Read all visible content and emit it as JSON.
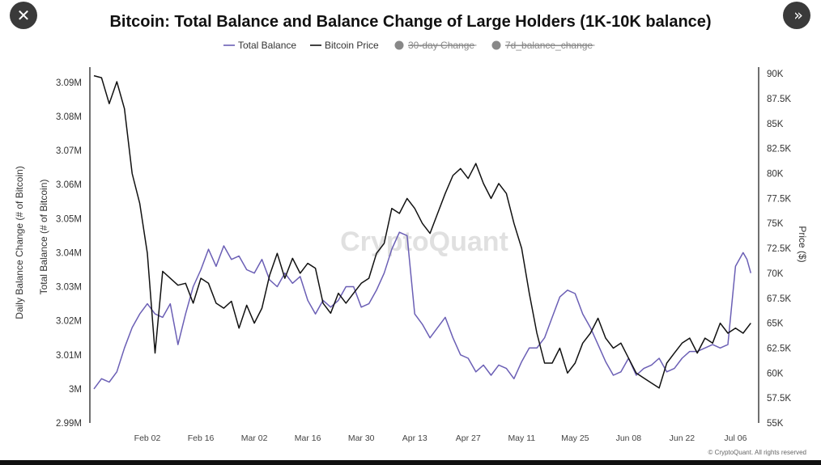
{
  "controls": {
    "close_glyph": "✕",
    "next_glyph": "»"
  },
  "chart_data": {
    "type": "line",
    "title": "Bitcoin: Total Balance and Balance Change of Large Holders (1K-10K balance)",
    "legend": [
      {
        "label": "Total Balance",
        "color": "#6b5fb5",
        "style": "line",
        "enabled": true
      },
      {
        "label": "Bitcoin Price",
        "color": "#111111",
        "style": "line",
        "enabled": true
      },
      {
        "label": "30-day Change",
        "color": "#888888",
        "style": "dot",
        "enabled": false
      },
      {
        "label": "7d_balance_change",
        "color": "#888888",
        "style": "dot",
        "enabled": false
      }
    ],
    "legend_position": "top",
    "y_left_outer_label": "Daily Balance Change (# of Bitcoin)",
    "y_left_label": "Total Balance (# of Bitcoin)",
    "y_right_label": "Price ($)",
    "y_left_ticks": [
      "2.99M",
      "3M",
      "3.01M",
      "3.02M",
      "3.03M",
      "3.04M",
      "3.05M",
      "3.06M",
      "3.07M",
      "3.08M",
      "3.09M"
    ],
    "y_left_range": [
      2990000,
      3094000
    ],
    "y_right_ticks": [
      "55K",
      "57.5K",
      "60K",
      "62.5K",
      "65K",
      "67.5K",
      "70K",
      "72.5K",
      "75K",
      "77.5K",
      "80K",
      "82.5K",
      "85K",
      "87.5K",
      "90K"
    ],
    "y_right_range": [
      55000,
      90500
    ],
    "x_ticks": [
      "Feb 02",
      "Feb 16",
      "Mar 02",
      "Mar 16",
      "Mar 30",
      "Apr 13",
      "Apr 27",
      "May 11",
      "May 25",
      "Jun 08",
      "Jun 22",
      "Jul 06"
    ],
    "x_range_days": [
      0,
      173
    ],
    "watermark": "CryptoQuant",
    "footer": "© CryptoQuant. All rights reserved",
    "grid": false,
    "series": [
      {
        "name": "Total Balance",
        "axis": "left",
        "color": "#6b5fb5",
        "points": [
          [
            0,
            3000000
          ],
          [
            2,
            3003000
          ],
          [
            4,
            3002000
          ],
          [
            6,
            3005000
          ],
          [
            8,
            3012000
          ],
          [
            10,
            3018000
          ],
          [
            12,
            3022000
          ],
          [
            14,
            3025000
          ],
          [
            16,
            3022000
          ],
          [
            18,
            3021000
          ],
          [
            20,
            3025000
          ],
          [
            22,
            3013000
          ],
          [
            24,
            3022000
          ],
          [
            26,
            3030000
          ],
          [
            28,
            3035000
          ],
          [
            30,
            3041000
          ],
          [
            32,
            3036000
          ],
          [
            34,
            3042000
          ],
          [
            36,
            3038000
          ],
          [
            38,
            3039000
          ],
          [
            40,
            3035000
          ],
          [
            42,
            3034000
          ],
          [
            44,
            3038000
          ],
          [
            46,
            3032000
          ],
          [
            48,
            3030000
          ],
          [
            50,
            3034000
          ],
          [
            52,
            3031000
          ],
          [
            54,
            3033000
          ],
          [
            56,
            3026000
          ],
          [
            58,
            3022000
          ],
          [
            60,
            3026000
          ],
          [
            62,
            3024000
          ],
          [
            64,
            3026000
          ],
          [
            66,
            3030000
          ],
          [
            68,
            3030000
          ],
          [
            70,
            3024000
          ],
          [
            72,
            3025000
          ],
          [
            74,
            3029000
          ],
          [
            76,
            3034000
          ],
          [
            78,
            3041000
          ],
          [
            80,
            3046000
          ],
          [
            82,
            3045000
          ],
          [
            84,
            3022000
          ],
          [
            86,
            3019000
          ],
          [
            88,
            3015000
          ],
          [
            90,
            3018000
          ],
          [
            92,
            3021000
          ],
          [
            94,
            3015000
          ],
          [
            96,
            3010000
          ],
          [
            98,
            3009000
          ],
          [
            100,
            3005000
          ],
          [
            102,
            3007000
          ],
          [
            104,
            3004000
          ],
          [
            106,
            3007000
          ],
          [
            108,
            3006000
          ],
          [
            110,
            3003000
          ],
          [
            112,
            3008000
          ],
          [
            114,
            3012000
          ],
          [
            116,
            3012000
          ],
          [
            118,
            3015000
          ],
          [
            120,
            3021000
          ],
          [
            122,
            3027000
          ],
          [
            124,
            3029000
          ],
          [
            126,
            3028000
          ],
          [
            128,
            3022000
          ],
          [
            130,
            3018000
          ],
          [
            132,
            3013000
          ],
          [
            134,
            3008000
          ],
          [
            136,
            3004000
          ],
          [
            138,
            3005000
          ],
          [
            140,
            3009000
          ],
          [
            142,
            3004000
          ],
          [
            144,
            3006000
          ],
          [
            146,
            3007000
          ],
          [
            148,
            3009000
          ],
          [
            150,
            3005000
          ],
          [
            152,
            3006000
          ],
          [
            154,
            3009000
          ],
          [
            156,
            3011000
          ],
          [
            158,
            3011000
          ],
          [
            160,
            3012000
          ],
          [
            162,
            3013000
          ],
          [
            164,
            3012000
          ],
          [
            166,
            3013000
          ],
          [
            168,
            3036000
          ],
          [
            170,
            3040000
          ],
          [
            171,
            3038000
          ],
          [
            172,
            3034000
          ]
        ]
      },
      {
        "name": "Bitcoin Price",
        "axis": "right",
        "color": "#111111",
        "points": [
          [
            0,
            89800
          ],
          [
            2,
            89600
          ],
          [
            4,
            87000
          ],
          [
            6,
            89200
          ],
          [
            8,
            86500
          ],
          [
            10,
            80000
          ],
          [
            12,
            77000
          ],
          [
            14,
            72000
          ],
          [
            16,
            62000
          ],
          [
            18,
            70200
          ],
          [
            20,
            69500
          ],
          [
            22,
            68800
          ],
          [
            24,
            69000
          ],
          [
            26,
            67000
          ],
          [
            28,
            69500
          ],
          [
            30,
            69000
          ],
          [
            32,
            67000
          ],
          [
            34,
            66500
          ],
          [
            36,
            67200
          ],
          [
            38,
            64500
          ],
          [
            40,
            66800
          ],
          [
            42,
            65000
          ],
          [
            44,
            66500
          ],
          [
            46,
            69800
          ],
          [
            48,
            72000
          ],
          [
            50,
            69500
          ],
          [
            52,
            71500
          ],
          [
            54,
            70000
          ],
          [
            56,
            71000
          ],
          [
            58,
            70500
          ],
          [
            60,
            67000
          ],
          [
            62,
            66000
          ],
          [
            64,
            68000
          ],
          [
            66,
            67000
          ],
          [
            68,
            68000
          ],
          [
            70,
            69000
          ],
          [
            72,
            69500
          ],
          [
            74,
            72000
          ],
          [
            76,
            73000
          ],
          [
            78,
            76500
          ],
          [
            80,
            76000
          ],
          [
            82,
            77500
          ],
          [
            84,
            76500
          ],
          [
            86,
            75000
          ],
          [
            88,
            74000
          ],
          [
            90,
            76000
          ],
          [
            92,
            78000
          ],
          [
            94,
            79800
          ],
          [
            96,
            80500
          ],
          [
            98,
            79500
          ],
          [
            100,
            81000
          ],
          [
            102,
            79000
          ],
          [
            104,
            77500
          ],
          [
            106,
            79000
          ],
          [
            108,
            78000
          ],
          [
            110,
            75000
          ],
          [
            112,
            72500
          ],
          [
            114,
            68000
          ],
          [
            116,
            64000
          ],
          [
            118,
            61000
          ],
          [
            120,
            61000
          ],
          [
            122,
            62500
          ],
          [
            124,
            60000
          ],
          [
            126,
            61000
          ],
          [
            128,
            63000
          ],
          [
            130,
            64000
          ],
          [
            132,
            65500
          ],
          [
            134,
            63500
          ],
          [
            136,
            62500
          ],
          [
            138,
            63000
          ],
          [
            140,
            61500
          ],
          [
            142,
            60000
          ],
          [
            144,
            59500
          ],
          [
            146,
            59000
          ],
          [
            148,
            58500
          ],
          [
            150,
            61000
          ],
          [
            152,
            62000
          ],
          [
            154,
            63000
          ],
          [
            156,
            63500
          ],
          [
            158,
            62000
          ],
          [
            160,
            63500
          ],
          [
            162,
            63000
          ],
          [
            164,
            65000
          ],
          [
            166,
            64000
          ],
          [
            168,
            64500
          ],
          [
            170,
            64000
          ],
          [
            172,
            65000
          ]
        ]
      }
    ]
  }
}
